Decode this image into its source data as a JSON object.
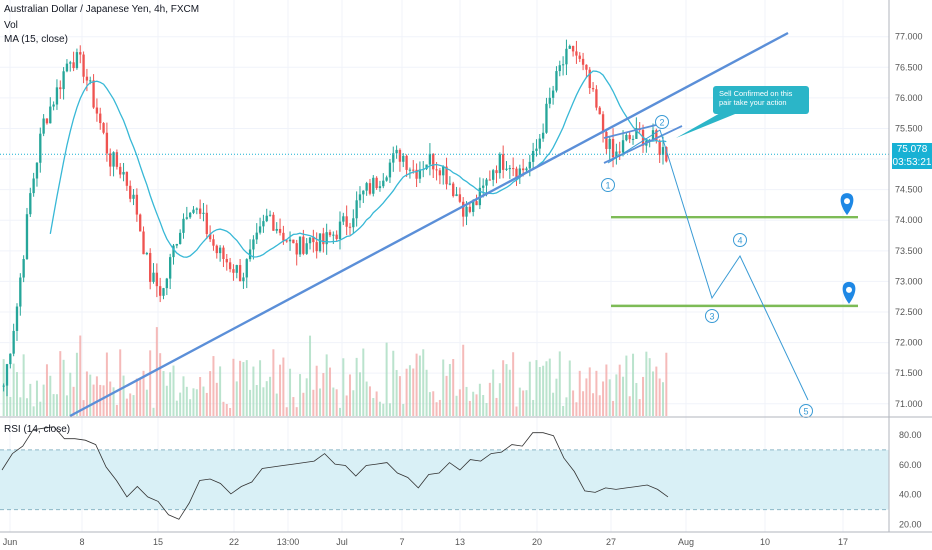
{
  "header": {
    "symbol": "Australian Dollar / Japanese Yen, 4h, FXCM",
    "volume_label": "Vol",
    "ma_label": "MA (15, close)"
  },
  "rsi_panel": {
    "label": "RSI (14, close)"
  },
  "annotation": {
    "callout": "Sell Confirmed on this pair take your action"
  },
  "price_tags": {
    "last_price": "75.078",
    "countdown": "03:53:21"
  },
  "colors": {
    "up": "#26a69a",
    "down": "#ef5350",
    "ma": "#38b8d6",
    "trend": "#5b8fd8",
    "support": "#7dbb56",
    "wave": "#3a9bd5",
    "rsi_band": "#d9f0f6",
    "tag": "#18b1d4"
  },
  "chart_data": [
    {
      "type": "candlestick",
      "title": "Australian Dollar / Japanese Yen, 4h, FXCM",
      "price_axis_ticks": [
        "77.000",
        "76.500",
        "76.000",
        "75.500",
        "75.000",
        "74.500",
        "74.000",
        "73.500",
        "73.000",
        "72.500",
        "72.000",
        "71.500",
        "71.000"
      ],
      "time_axis_ticks": [
        "Jun",
        "8",
        "15",
        "22",
        "13:00",
        "Jul",
        "7",
        "13",
        "20",
        "27",
        "Aug",
        "10",
        "17"
      ],
      "ylim": [
        70.8,
        77.6
      ],
      "grid": true,
      "close_path": [
        {
          "x": "Jun",
          "y": 71.3
        },
        {
          "x": "Jun 2",
          "y": 72.6
        },
        {
          "x": "Jun 3",
          "y": 74.4
        },
        {
          "x": "Jun 4",
          "y": 75.6
        },
        {
          "x": "Jun 5",
          "y": 76.1
        },
        {
          "x": "Jun 6",
          "y": 76.7
        },
        {
          "x": "Jun 8",
          "y": 76.5
        },
        {
          "x": "Jun 9",
          "y": 75.8
        },
        {
          "x": "Jun 10",
          "y": 75.0
        },
        {
          "x": "Jun 11",
          "y": 74.8
        },
        {
          "x": "Jun 12",
          "y": 74.2
        },
        {
          "x": "Jun 13",
          "y": 73.1
        },
        {
          "x": "Jun 15",
          "y": 72.8
        },
        {
          "x": "Jun 16",
          "y": 73.7
        },
        {
          "x": "Jun 17",
          "y": 74.3
        },
        {
          "x": "Jun 18",
          "y": 74.0
        },
        {
          "x": "Jun 19",
          "y": 73.5
        },
        {
          "x": "Jun 20",
          "y": 73.3
        },
        {
          "x": "Jun 21",
          "y": 73.1
        },
        {
          "x": "Jun 22",
          "y": 73.6
        },
        {
          "x": "Jun 23",
          "y": 74.1
        },
        {
          "x": "Jun 24",
          "y": 73.8
        },
        {
          "x": "Jun 25",
          "y": 73.5
        },
        {
          "x": "Jun 26",
          "y": 73.7
        },
        {
          "x": "Jun 27",
          "y": 73.6
        },
        {
          "x": "Jun 29",
          "y": 73.8
        },
        {
          "x": "Jun 30",
          "y": 74.0
        },
        {
          "x": "Jul",
          "y": 74.4
        },
        {
          "x": "Jul 2",
          "y": 74.6
        },
        {
          "x": "Jul 3",
          "y": 74.9
        },
        {
          "x": "Jul 6",
          "y": 75.1
        },
        {
          "x": "Jul 7",
          "y": 74.8
        },
        {
          "x": "Jul 8",
          "y": 75.0
        },
        {
          "x": "Jul 9",
          "y": 74.9
        },
        {
          "x": "Jul 10",
          "y": 74.5
        },
        {
          "x": "Jul 13",
          "y": 74.1
        },
        {
          "x": "Jul 14",
          "y": 74.4
        },
        {
          "x": "Jul 15",
          "y": 74.9
        },
        {
          "x": "Jul 16",
          "y": 75.0
        },
        {
          "x": "Jul 17",
          "y": 74.8
        },
        {
          "x": "Jul 20",
          "y": 75.0
        },
        {
          "x": "Jul 21",
          "y": 75.8
        },
        {
          "x": "Jul 22",
          "y": 76.5
        },
        {
          "x": "Jul 23",
          "y": 76.8
        },
        {
          "x": "Jul 24",
          "y": 76.3
        },
        {
          "x": "Jul 25",
          "y": 75.6
        },
        {
          "x": "Jul 27",
          "y": 75.0
        },
        {
          "x": "Jul 28",
          "y": 75.3
        },
        {
          "x": "Jul 29",
          "y": 75.4
        },
        {
          "x": "Jul 30",
          "y": 75.3
        },
        {
          "x": "Jul 31",
          "y": 75.078
        }
      ],
      "annotations": [
        "Sell Confirmed on this pair take your action"
      ],
      "wave_labels": [
        {
          "label": "1",
          "x": "Jul 25",
          "y": 74.5
        },
        {
          "label": "2",
          "x": "Jul 31",
          "y": 75.6
        },
        {
          "label": "3",
          "x": "Aug 4",
          "y": 72.2
        },
        {
          "label": "4",
          "x": "Aug 6",
          "y": 73.9
        },
        {
          "label": "5",
          "x": "Aug 12",
          "y": 70.8
        }
      ],
      "support_levels": [
        74.05,
        72.6
      ]
    },
    {
      "type": "line",
      "title": "RSI (14, close)",
      "ticks": [
        "80.00",
        "60.00",
        "40.00",
        "20.00"
      ],
      "ylim": [
        15,
        90
      ],
      "band": [
        30,
        70
      ],
      "values": [
        58,
        66,
        74,
        82,
        86,
        84,
        79,
        76,
        78,
        72,
        60,
        48,
        40,
        44,
        40,
        34,
        28,
        22,
        36,
        48,
        52,
        46,
        42,
        44,
        50,
        56,
        60,
        58,
        62,
        60,
        64,
        66,
        62,
        58,
        54,
        58,
        62,
        60,
        56,
        50,
        46,
        52,
        56,
        60,
        58,
        62,
        64,
        66,
        70,
        72,
        74,
        80,
        83,
        78,
        66,
        54,
        44,
        40,
        46,
        42,
        46,
        44,
        48,
        42,
        40
      ]
    }
  ]
}
